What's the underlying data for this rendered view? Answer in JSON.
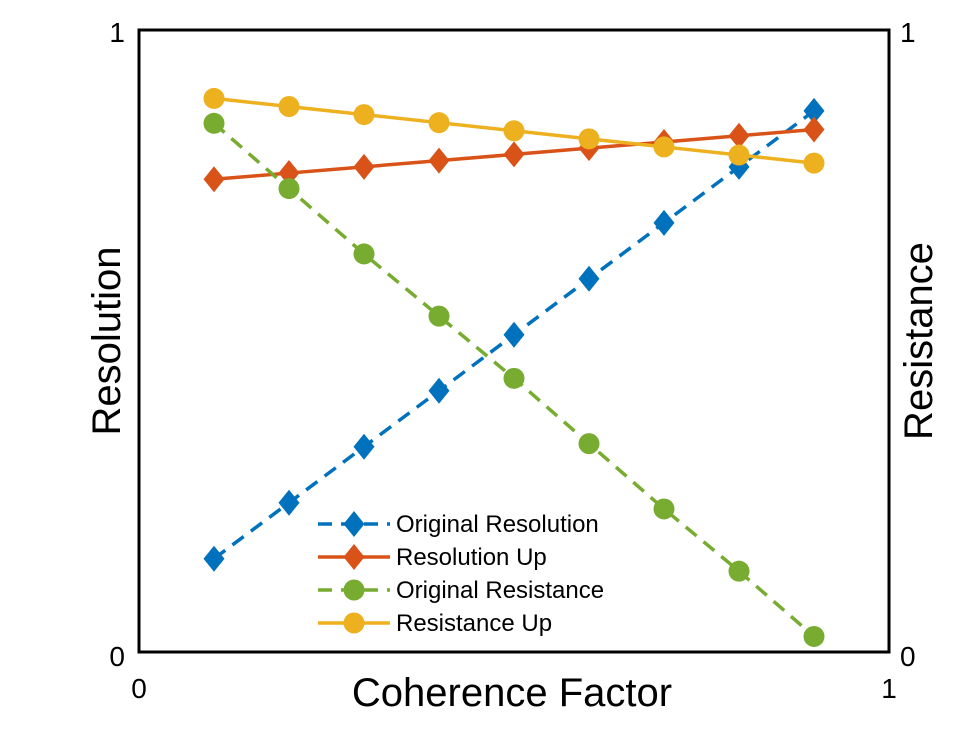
{
  "chart_data": {
    "type": "line",
    "title": "",
    "xlabel": "Coherence Factor",
    "ylabel": "Resolution",
    "y2label": "Resistance",
    "xlim": [
      0,
      1
    ],
    "ylim": [
      0,
      1
    ],
    "y2lim": [
      0,
      1
    ],
    "x_ticks": [
      "0",
      "1"
    ],
    "y_ticks": [
      "0",
      "1"
    ],
    "y2_ticks": [
      "0",
      "1"
    ],
    "x": [
      0.1,
      0.2,
      0.3,
      0.4,
      0.5,
      0.6,
      0.7,
      0.8,
      0.9
    ],
    "grid": false,
    "legend_position": "bottom-center",
    "series": [
      {
        "name": "Original Resolution",
        "axis": "left",
        "color": "#0072bd",
        "line": "dashed",
        "marker": "diamond",
        "values": [
          0.15,
          0.24,
          0.33,
          0.42,
          0.51,
          0.6,
          0.69,
          0.78,
          0.87
        ]
      },
      {
        "name": "Resolution Up",
        "axis": "left",
        "color": "#d95319",
        "line": "solid",
        "marker": "diamond",
        "values": [
          0.76,
          0.77,
          0.78,
          0.79,
          0.8,
          0.81,
          0.82,
          0.83,
          0.84
        ]
      },
      {
        "name": "Original Resistance",
        "axis": "right",
        "color": "#77ac30",
        "line": "dashed",
        "marker": "circle",
        "values": [
          0.85,
          0.745,
          0.64,
          0.54,
          0.44,
          0.335,
          0.23,
          0.13,
          0.025
        ]
      },
      {
        "name": "Resistance Up",
        "axis": "right",
        "color": "#edb120",
        "line": "solid",
        "marker": "circle",
        "values": [
          0.89,
          0.877,
          0.864,
          0.851,
          0.838,
          0.825,
          0.812,
          0.799,
          0.786
        ]
      }
    ]
  }
}
